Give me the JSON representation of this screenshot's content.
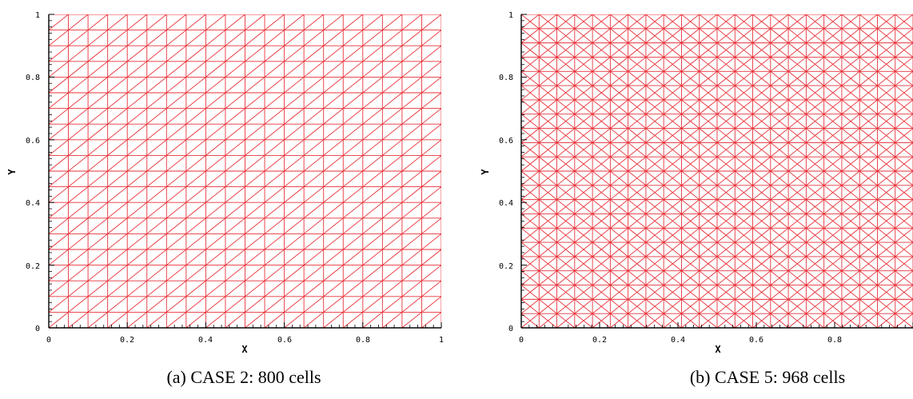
{
  "panels": [
    {
      "id": "a",
      "caption": "(a) CASE 2: 800 cells",
      "xlabel": "X",
      "ylabel": "Y",
      "xticks": [
        "0",
        "0.2",
        "0.4",
        "0.6",
        "0.8",
        "1"
      ],
      "yticks": [
        "0",
        "0.2",
        "0.4",
        "0.6",
        "0.8",
        "1"
      ],
      "mesh": {
        "type": "right-diagonal-triangles",
        "divisions": 20,
        "cells": 800
      },
      "line_color": "#e8323a"
    },
    {
      "id": "b",
      "caption": "(b) CASE 5: 968 cells",
      "xlabel": "X",
      "ylabel": "Y",
      "xticks": [
        "0",
        "0.2",
        "0.4",
        "0.6",
        "0.8"
      ],
      "yticks": [
        "0",
        "0.2",
        "0.4",
        "0.6",
        "0.8",
        "1"
      ],
      "mesh": {
        "type": "cross-diagonal-triangles",
        "divisions": 22,
        "cells": 968
      },
      "line_color": "#e8323a"
    }
  ]
}
